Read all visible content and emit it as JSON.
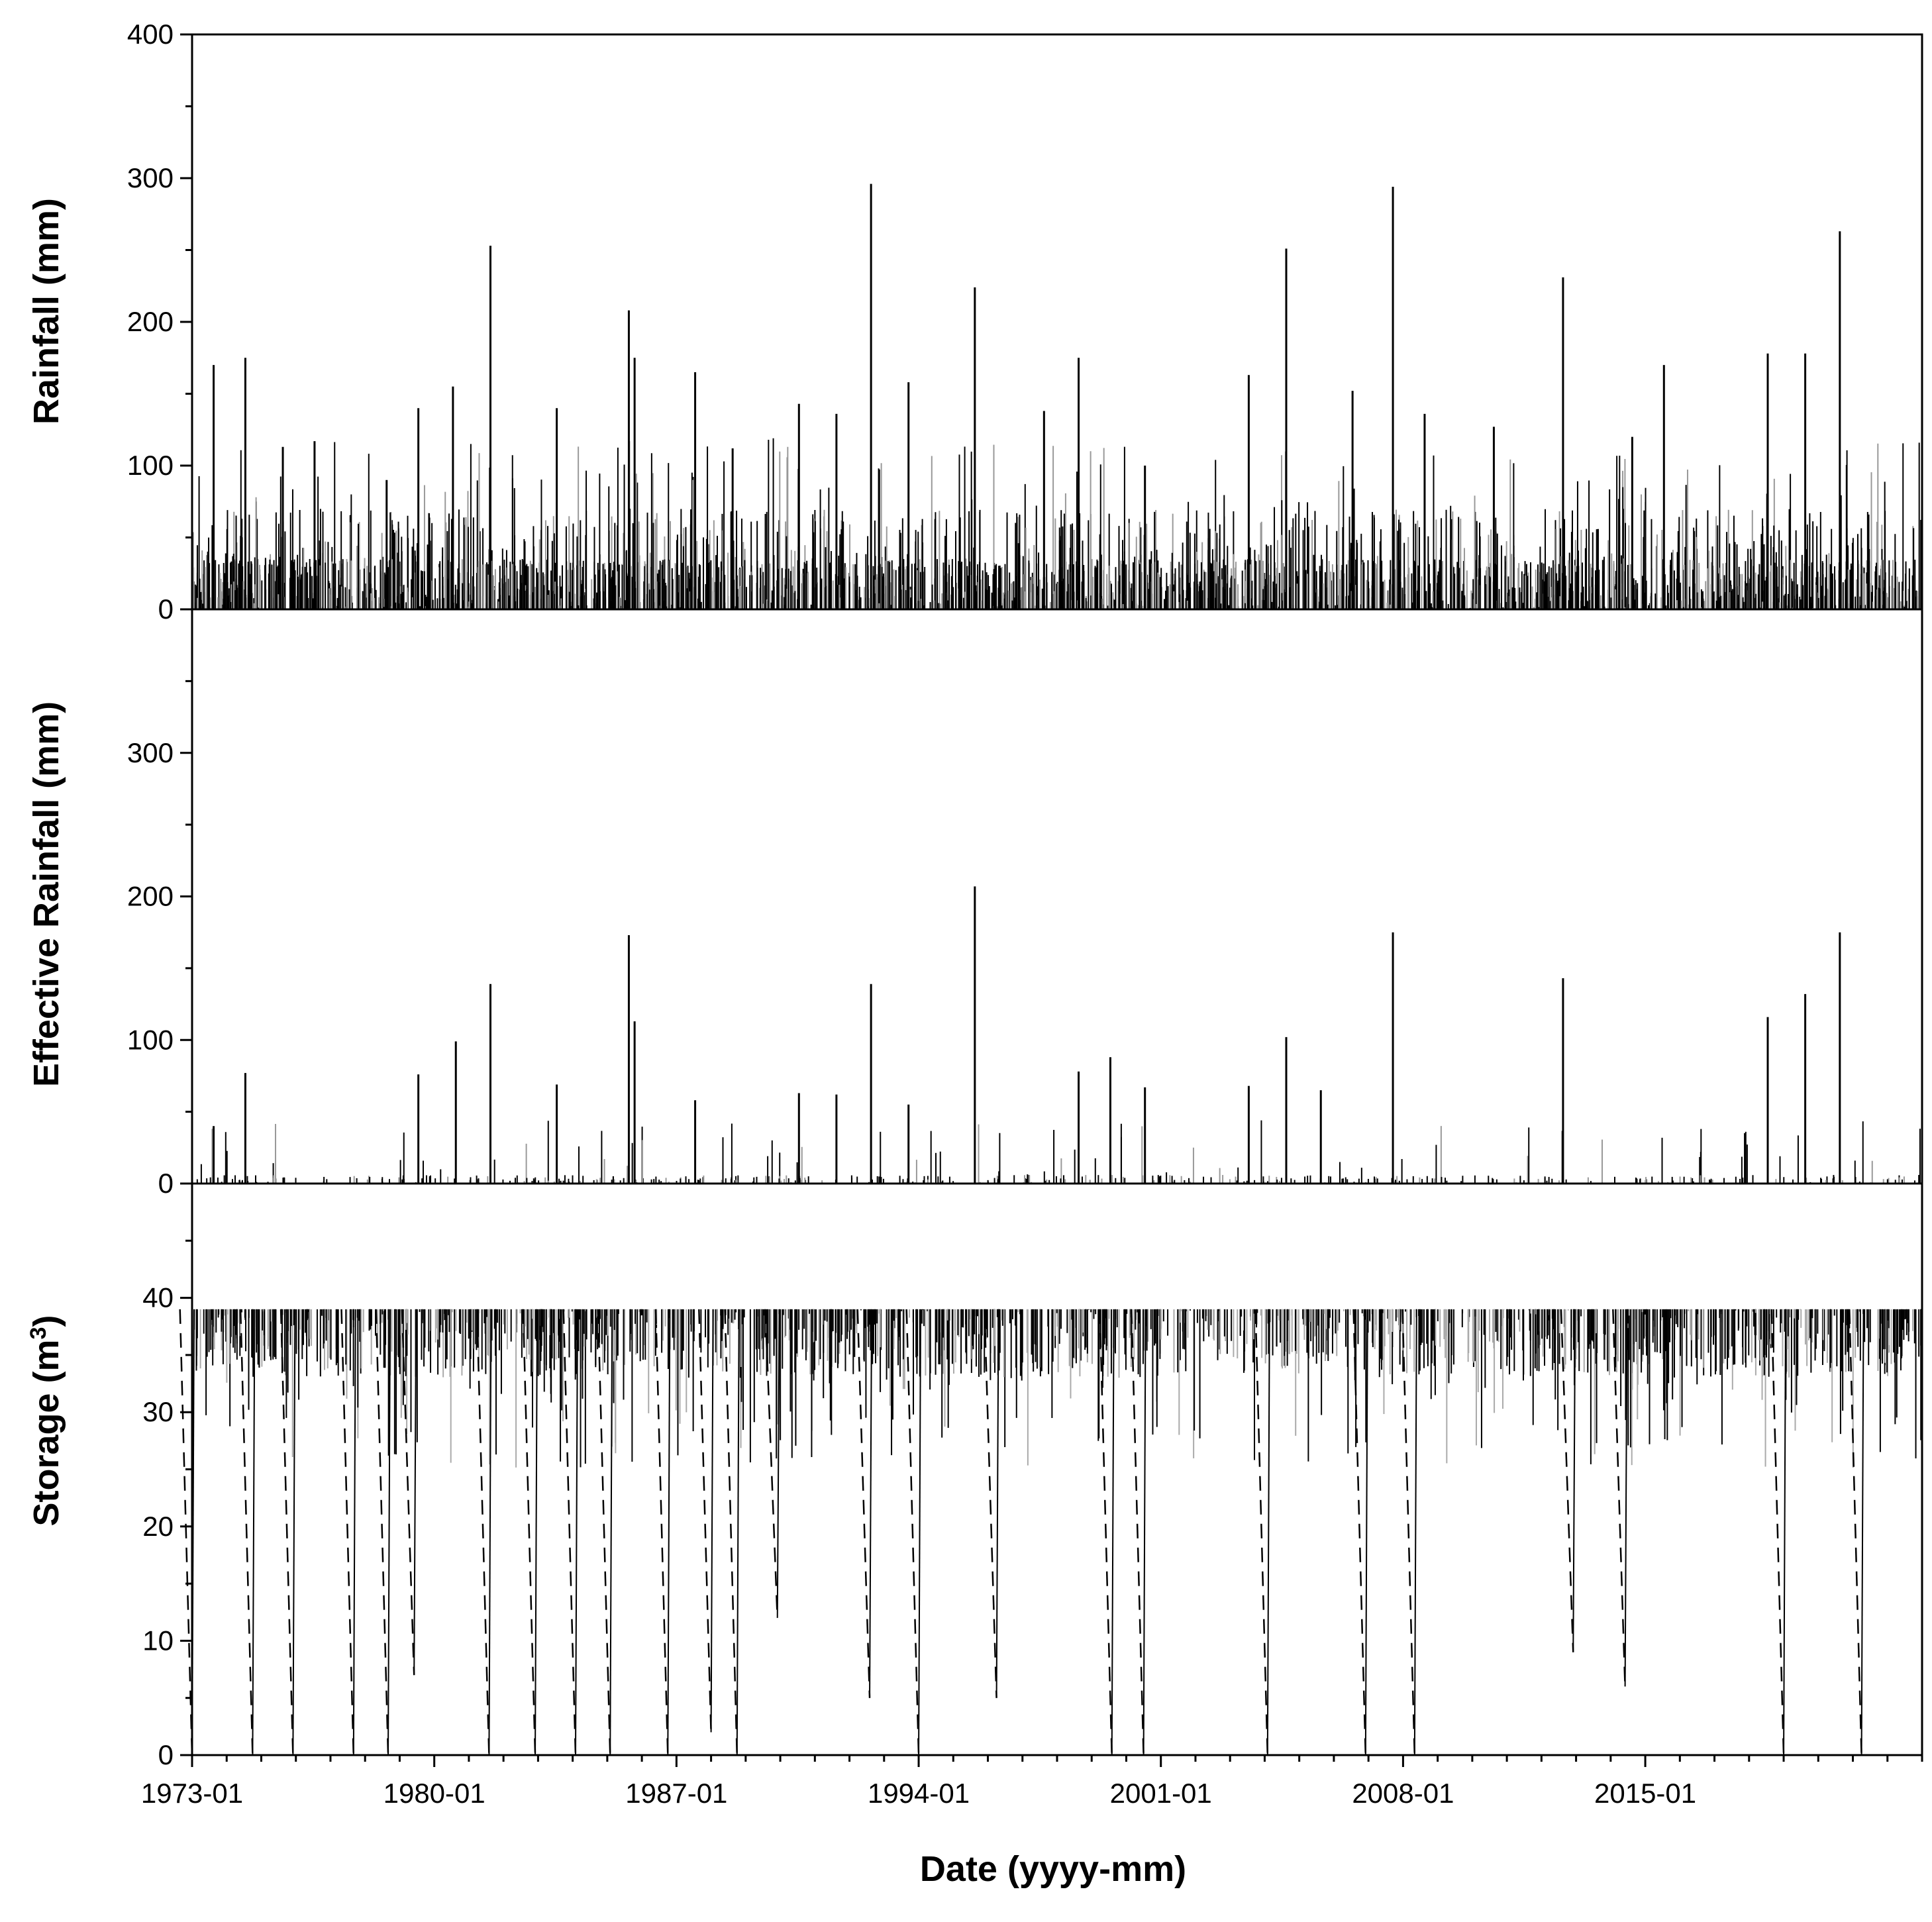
{
  "chart_data": {
    "type": "bar",
    "layout": "three stacked panels sharing a date x-axis",
    "x_axis": {
      "label": "Date (yyyy-mm)",
      "range": [
        "1973-01",
        "2022-12"
      ],
      "tick_labels": [
        "1973-01",
        "1980-01",
        "1987-01",
        "1994-01",
        "2001-01",
        "2008-01",
        "2015-01"
      ],
      "minor_ticks": "yearly"
    },
    "panels": [
      {
        "id": "rainfall",
        "ylabel": "Rainfall (mm)",
        "ylim": [
          0,
          400
        ],
        "y_ticks": [
          0,
          100,
          200,
          300,
          400
        ],
        "series_color": "#000000",
        "note": "dense daily bars mostly below 50 mm with frequent spikes",
        "peaks": [
          {
            "date": "1973-08",
            "value": 170
          },
          {
            "date": "1974-07",
            "value": 175
          },
          {
            "date": "1975-08",
            "value": 113
          },
          {
            "date": "1976-07",
            "value": 117
          },
          {
            "date": "1978-08",
            "value": 90
          },
          {
            "date": "1979-07",
            "value": 140
          },
          {
            "date": "1980-07",
            "value": 155
          },
          {
            "date": "1981-08",
            "value": 253
          },
          {
            "date": "1983-07",
            "value": 140
          },
          {
            "date": "1985-08",
            "value": 208
          },
          {
            "date": "1985-10",
            "value": 175
          },
          {
            "date": "1987-07",
            "value": 165
          },
          {
            "date": "1988-08",
            "value": 112
          },
          {
            "date": "1990-07",
            "value": 143
          },
          {
            "date": "1991-08",
            "value": 136
          },
          {
            "date": "1992-08",
            "value": 296
          },
          {
            "date": "1993-09",
            "value": 158
          },
          {
            "date": "1995-08",
            "value": 224
          },
          {
            "date": "1997-08",
            "value": 138
          },
          {
            "date": "1998-08",
            "value": 175
          },
          {
            "date": "2000-07",
            "value": 100
          },
          {
            "date": "2003-07",
            "value": 163
          },
          {
            "date": "2004-08",
            "value": 251
          },
          {
            "date": "2006-07",
            "value": 152
          },
          {
            "date": "2007-09",
            "value": 294
          },
          {
            "date": "2008-08",
            "value": 136
          },
          {
            "date": "2010-08",
            "value": 127
          },
          {
            "date": "2012-08",
            "value": 231
          },
          {
            "date": "2014-08",
            "value": 120
          },
          {
            "date": "2015-07",
            "value": 170
          },
          {
            "date": "2018-07",
            "value": 178
          },
          {
            "date": "2019-08",
            "value": 178
          },
          {
            "date": "2020-08",
            "value": 263
          }
        ]
      },
      {
        "id": "effective_rainfall",
        "ylabel": "Effective Rainfall (mm)",
        "ylim": [
          0,
          400
        ],
        "y_ticks": [
          0,
          100,
          200,
          300
        ],
        "series_color": "#000000",
        "note": "sparse bars, mostly zero",
        "peaks": [
          {
            "date": "1973-08",
            "value": 40
          },
          {
            "date": "1974-07",
            "value": 77
          },
          {
            "date": "1979-07",
            "value": 76
          },
          {
            "date": "1980-08",
            "value": 99
          },
          {
            "date": "1981-08",
            "value": 139
          },
          {
            "date": "1983-07",
            "value": 69
          },
          {
            "date": "1985-08",
            "value": 173
          },
          {
            "date": "1985-10",
            "value": 113
          },
          {
            "date": "1987-07",
            "value": 58
          },
          {
            "date": "1990-07",
            "value": 63
          },
          {
            "date": "1991-08",
            "value": 62
          },
          {
            "date": "1992-08",
            "value": 139
          },
          {
            "date": "1993-09",
            "value": 55
          },
          {
            "date": "1995-08",
            "value": 207
          },
          {
            "date": "1998-08",
            "value": 78
          },
          {
            "date": "1999-07",
            "value": 88
          },
          {
            "date": "2000-07",
            "value": 67
          },
          {
            "date": "2003-07",
            "value": 68
          },
          {
            "date": "2004-08",
            "value": 102
          },
          {
            "date": "2005-08",
            "value": 65
          },
          {
            "date": "2007-09",
            "value": 175
          },
          {
            "date": "2012-08",
            "value": 143
          },
          {
            "date": "2018-07",
            "value": 116
          },
          {
            "date": "2019-08",
            "value": 132
          },
          {
            "date": "2020-08",
            "value": 175
          }
        ]
      },
      {
        "id": "storage",
        "ylabel": "Storage (m",
        "ylabel_superscript": "3",
        "ylabel_suffix": ")",
        "ylim": [
          0,
          50
        ],
        "y_ticks": [
          0,
          10,
          20,
          30,
          40
        ],
        "series_color": "#000000",
        "note": "storage drawn as dashed drops below capacity",
        "capacity": 39,
        "drawdowns": [
          {
            "date": "1973-01",
            "min": 0
          },
          {
            "date": "1974-10",
            "min": 0
          },
          {
            "date": "1975-12",
            "min": 0
          },
          {
            "date": "1977-09",
            "min": 0
          },
          {
            "date": "1978-09",
            "min": 0
          },
          {
            "date": "1979-06",
            "min": 7
          },
          {
            "date": "1981-08",
            "min": 0
          },
          {
            "date": "1982-12",
            "min": 0
          },
          {
            "date": "1984-02",
            "min": 0
          },
          {
            "date": "1985-02",
            "min": 0
          },
          {
            "date": "1986-10",
            "min": 0
          },
          {
            "date": "1988-01",
            "min": 2
          },
          {
            "date": "1988-10",
            "min": 0
          },
          {
            "date": "1989-12",
            "min": 12
          },
          {
            "date": "1992-08",
            "min": 5
          },
          {
            "date": "1994-01",
            "min": 0
          },
          {
            "date": "1996-04",
            "min": 5
          },
          {
            "date": "1999-08",
            "min": 0
          },
          {
            "date": "2000-07",
            "min": 0
          },
          {
            "date": "2004-02",
            "min": 0
          },
          {
            "date": "2006-12",
            "min": 0
          },
          {
            "date": "2008-05",
            "min": 0
          },
          {
            "date": "2012-12",
            "min": 9
          },
          {
            "date": "2014-06",
            "min": 6
          },
          {
            "date": "2019-01",
            "min": 0
          },
          {
            "date": "2021-04",
            "min": 0
          }
        ]
      }
    ]
  }
}
